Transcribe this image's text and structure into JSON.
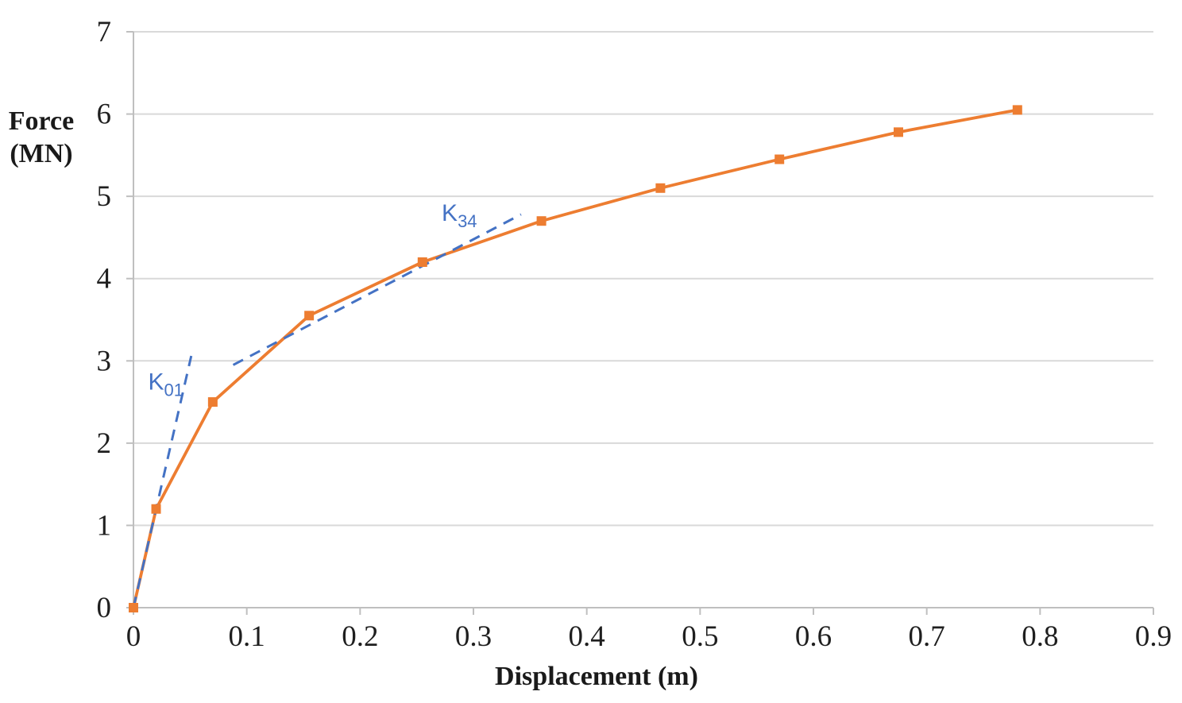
{
  "chart_data": {
    "type": "line",
    "title": "",
    "xlabel": "Displacement (m)",
    "ylabel": "Force (MN)",
    "ylabel_lines": [
      "Force",
      "(MN)"
    ],
    "xlim": [
      0,
      0.9
    ],
    "ylim": [
      0,
      7
    ],
    "x_ticks": [
      0,
      0.1,
      0.2,
      0.3,
      0.4,
      0.5,
      0.6,
      0.7,
      0.8,
      0.9
    ],
    "x_tick_labels": [
      "0",
      "0.1",
      "0.2",
      "0.3",
      "0.4",
      "0.5",
      "0.6",
      "0.7",
      "0.8",
      "0.9"
    ],
    "y_ticks": [
      0,
      1,
      2,
      3,
      4,
      5,
      6,
      7
    ],
    "y_tick_labels": [
      "0",
      "1",
      "2",
      "3",
      "4",
      "5",
      "6",
      "7"
    ],
    "grid": "horizontal",
    "legend": "none",
    "colors": {
      "series": "#ED7D31",
      "annotation": "#4472C4",
      "gridline": "#D9D9D9",
      "axis": "#BFBFBF",
      "text": "#1f1f1f"
    },
    "series": [
      {
        "name": "force-displacement-curve",
        "marker": "square",
        "x": [
          0,
          0.02,
          0.07,
          0.155,
          0.255,
          0.36,
          0.465,
          0.57,
          0.675,
          0.78
        ],
        "y": [
          0,
          1.2,
          2.5,
          3.55,
          4.2,
          4.7,
          5.1,
          5.45,
          5.78,
          6.05
        ]
      }
    ],
    "annotations": [
      {
        "name": "K01-stiffness-tangent",
        "style": "dashed",
        "x1": 0,
        "y1": 0,
        "x2": 0.051,
        "y2": 3.06,
        "label_main": "K",
        "label_sub": "01",
        "label_x": 0.013,
        "label_y": 2.65
      },
      {
        "name": "K34-stiffness-tangent",
        "style": "dashed",
        "x1": 0.088,
        "y1": 2.95,
        "x2": 0.342,
        "y2": 4.78,
        "label_main": "K",
        "label_sub": "34",
        "label_x": 0.272,
        "label_y": 4.7
      }
    ]
  }
}
